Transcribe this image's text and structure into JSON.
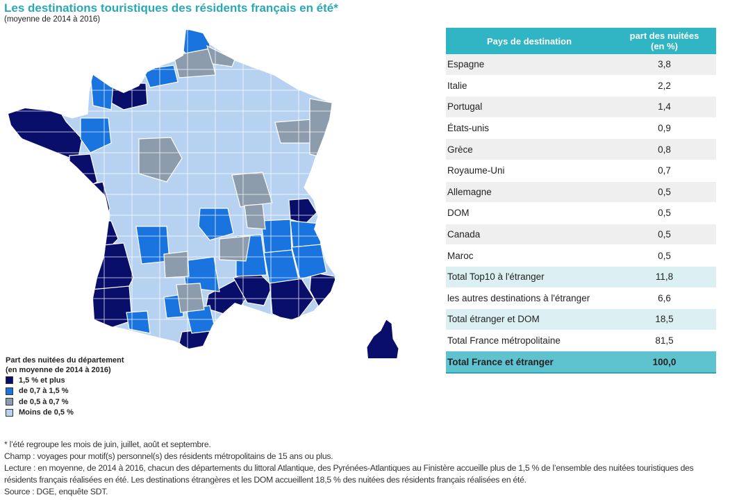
{
  "title": "Les destinations touristiques des résidents français en été*",
  "subtitle": "(moyenne de 2014 à 2016)",
  "colors": {
    "dark": "#0a0e6b",
    "mid": "#1a74e0",
    "gray": "#8c9cad",
    "light": "#b7d2f1",
    "teal": "#2fb5c3"
  },
  "legend": {
    "title_line1": "Part des nuitées du département",
    "title_line2": "(en moyenne de 2014 à 2016)",
    "items": [
      {
        "label": "1,5 % et plus",
        "color": "#0a0e6b"
      },
      {
        "label": "de 0,7 à 1,5 %",
        "color": "#1a74e0"
      },
      {
        "label": "de 0,5 à 0,7 %",
        "color": "#8c9cad"
      },
      {
        "label": "Moins de 0,5 %",
        "color": "#b7d2f1"
      }
    ]
  },
  "table": {
    "header_country": "Pays de destination",
    "header_share_line1": "part des nuitées",
    "header_share_line2": "(en %)",
    "rows": [
      {
        "country": "Espagne",
        "share": "3,8",
        "style": "gray"
      },
      {
        "country": "Italie",
        "share": "2,2",
        "style": "white"
      },
      {
        "country": "Portugal",
        "share": "1,4",
        "style": "gray"
      },
      {
        "country": "États-unis",
        "share": "0,9",
        "style": "white"
      },
      {
        "country": "Grèce",
        "share": "0,8",
        "style": "gray"
      },
      {
        "country": "Royaume-Uni",
        "share": "0,7",
        "style": "white"
      },
      {
        "country": "Allemagne",
        "share": "0,5",
        "style": "gray"
      },
      {
        "country": "DOM",
        "share": "0,5",
        "style": "white"
      },
      {
        "country": "Canada",
        "share": "0,5",
        "style": "gray"
      },
      {
        "country": "Maroc",
        "share": "0,5",
        "style": "white"
      },
      {
        "country": "Total Top10 à l'étranger",
        "share": "11,8",
        "style": "teal"
      },
      {
        "country": "les autres destinations à l'étranger",
        "share": "6,6",
        "style": "white"
      },
      {
        "country": "Total étranger et DOM",
        "share": "18,5",
        "style": "teal"
      },
      {
        "country": "Total France métropolitaine",
        "share": "81,5",
        "style": "white"
      },
      {
        "country": "Total France et étranger",
        "share": "100,0",
        "style": "total"
      }
    ]
  },
  "notes": {
    "line1": "* l’été regroupe les mois de juin, juillet, août et septembre.",
    "line2": "Champ : voyages pour motif(s) personnel(s) des résidents métropolitains de 15 ans ou plus.",
    "line3": "Lecture : en moyenne, de 2014 à 2016, chacun des départements du littoral Atlantique, des Pyrénées-Atlantiques au Finistère accueille plus de 1,5 % de l’ensemble des nuitées touristiques des",
    "line4": "résidents français réalisées en été. Les destinations étrangères et les DOM accueillent 18,5 % des nuitées des résidents français réalisées en été.",
    "line5": "Source : DGE, enquête SDT."
  }
}
